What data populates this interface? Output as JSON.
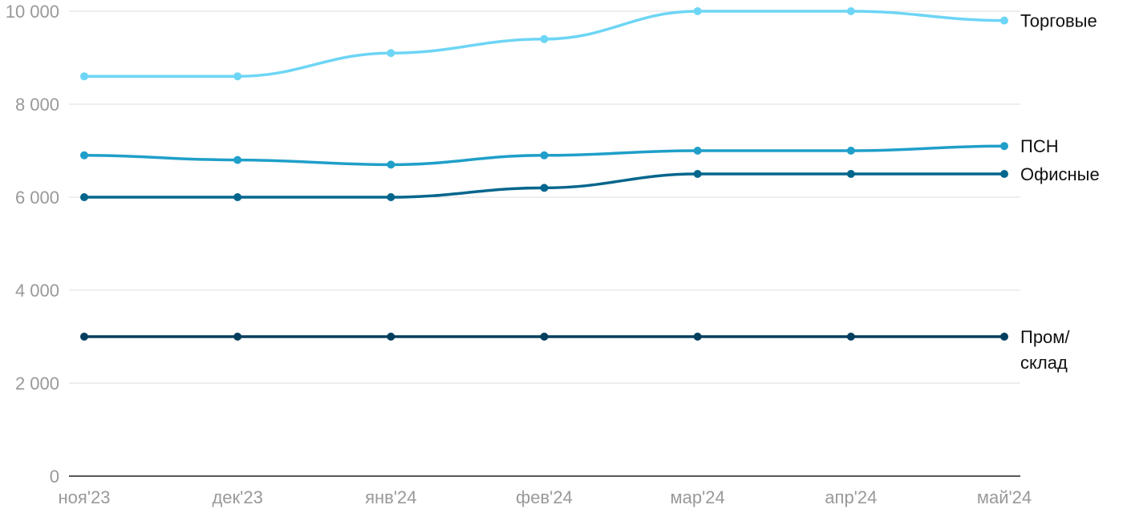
{
  "chart_data": {
    "type": "line",
    "categories": [
      "ноя'23",
      "дек'23",
      "янв'24",
      "фев'24",
      "мар'24",
      "апр'24",
      "май'24"
    ],
    "ylim": [
      0,
      10000
    ],
    "y_ticks": [
      {
        "value": 0,
        "label": "0"
      },
      {
        "value": 2000,
        "label": "2 000"
      },
      {
        "value": 4000,
        "label": "4 000"
      },
      {
        "value": 6000,
        "label": "6 000"
      },
      {
        "value": 8000,
        "label": "8 000"
      },
      {
        "value": 10000,
        "label": "10 000"
      }
    ],
    "grid": true,
    "legend": "direct labels at right end of lines",
    "series": [
      {
        "name": "Торговые",
        "label_lines": [
          "Торговые"
        ],
        "color": "#6dd5f5",
        "values": [
          8600,
          8600,
          9100,
          9400,
          10000,
          10000,
          9800
        ]
      },
      {
        "name": "ПСН",
        "label_lines": [
          "ПСН"
        ],
        "color": "#1f9fc9",
        "values": [
          6900,
          6800,
          6700,
          6900,
          7000,
          7000,
          7100
        ]
      },
      {
        "name": "Офисные",
        "label_lines": [
          "Офисные"
        ],
        "color": "#05668d",
        "values": [
          6000,
          6000,
          6000,
          6200,
          6500,
          6500,
          6500
        ]
      },
      {
        "name": "Пром/склад",
        "label_lines": [
          "Пром/",
          "склад"
        ],
        "color": "#023e5e",
        "values": [
          3000,
          3000,
          3000,
          3000,
          3000,
          3000,
          3000
        ]
      }
    ]
  }
}
